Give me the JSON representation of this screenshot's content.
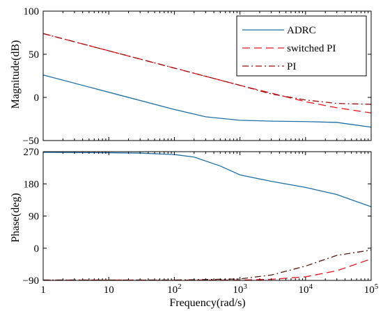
{
  "chart_data": [
    {
      "type": "line",
      "panel": "magnitude",
      "ylabel": "Magnitude(dB)",
      "xscale": "log",
      "xlim": [
        1,
        100000
      ],
      "ylim": [
        -50,
        100
      ],
      "yticks": [
        100,
        50,
        0,
        -50
      ],
      "ytick_labels": [
        "100",
        "50",
        "0",
        "−50"
      ],
      "grid": false,
      "legend_position": "top-right",
      "series": [
        {
          "name": "ADRC",
          "color": "#1f6fa7",
          "dash": "solid",
          "x": [
            1,
            10,
            100,
            300,
            1000,
            3000,
            10000,
            30000,
            100000
          ],
          "y": [
            26,
            6,
            -14,
            -22.5,
            -26.5,
            -27.5,
            -28,
            -29,
            -34.5
          ]
        },
        {
          "name": "switched PI",
          "color": "#e8141e",
          "dash": "dashed",
          "x": [
            1,
            10,
            100,
            1000,
            3000,
            10000,
            30000,
            100000
          ],
          "y": [
            74,
            54,
            34,
            14,
            5,
            -5,
            -12,
            -18
          ]
        },
        {
          "name": "PI",
          "color": "#9a0d0d",
          "dash": "dashdot",
          "x": [
            1,
            10,
            100,
            1000,
            3000,
            10000,
            30000,
            100000
          ],
          "y": [
            74,
            54,
            34,
            14,
            4,
            -3,
            -7,
            -8
          ]
        }
      ]
    },
    {
      "type": "line",
      "panel": "phase",
      "xlabel": "Frequency(rad/s)",
      "ylabel": "Phase(deg)",
      "xscale": "log",
      "xlim": [
        1,
        100000
      ],
      "ylim": [
        -90,
        270
      ],
      "yticks": [
        270,
        180,
        90,
        0,
        -90
      ],
      "ytick_labels": [
        "270",
        "180",
        "90",
        "0",
        "−90"
      ],
      "xticks": [
        1,
        10,
        100,
        1000,
        10000,
        100000
      ],
      "xtick_labels": [
        {
          "base": "1",
          "exp": ""
        },
        {
          "base": "10",
          "exp": ""
        },
        {
          "base": "10",
          "exp": "2"
        },
        {
          "base": "10",
          "exp": "3"
        },
        {
          "base": "10",
          "exp": "4"
        },
        {
          "base": "10",
          "exp": "5"
        }
      ],
      "grid": false,
      "series": [
        {
          "name": "ADRC",
          "color": "#1f6fa7",
          "dash": "solid",
          "x": [
            1,
            10,
            30,
            100,
            200,
            500,
            1000,
            3000,
            10000,
            30000,
            100000
          ],
          "y": [
            268,
            267,
            266,
            262,
            255,
            230,
            205,
            187,
            170,
            150,
            116
          ]
        },
        {
          "name": "switched PI",
          "color": "#e8141e",
          "dash": "dashed",
          "x": [
            1,
            10,
            100,
            1000,
            3000,
            10000,
            30000,
            100000
          ],
          "y": [
            -89,
            -89,
            -89,
            -89,
            -87,
            -80,
            -63,
            -30
          ]
        },
        {
          "name": "PI",
          "color": "#5a1a0a",
          "dash": "dashdot",
          "x": [
            1,
            10,
            100,
            1000,
            3000,
            10000,
            30000,
            100000
          ],
          "y": [
            -89,
            -89,
            -89,
            -86,
            -75,
            -50,
            -20,
            -5
          ]
        }
      ]
    }
  ]
}
